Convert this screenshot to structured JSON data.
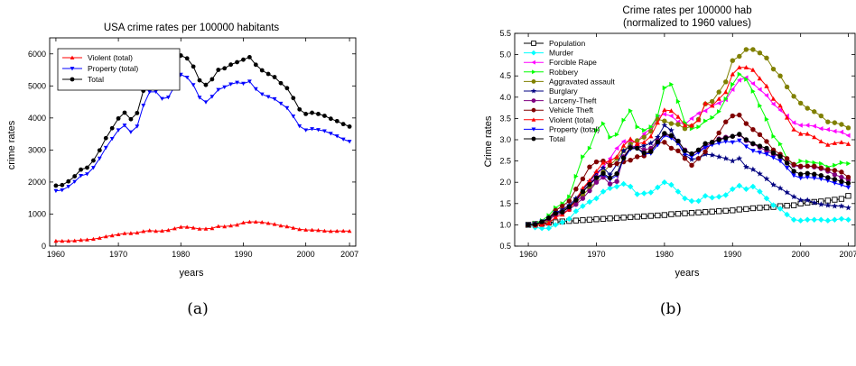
{
  "panel_labels": {
    "a": "(a)",
    "b": "(b)"
  },
  "chart_data": [
    {
      "type": "line",
      "title": "USA crime rates per 100000 habitants",
      "subtitle": "",
      "xlabel": "years",
      "ylabel": "crime rates",
      "xlim": [
        1959,
        2008
      ],
      "ylim": [
        0,
        6500
      ],
      "xticks": [
        1960,
        1970,
        1980,
        1990,
        2000,
        2007
      ],
      "yticks": [
        0,
        1000,
        2000,
        3000,
        4000,
        5000,
        6000
      ],
      "grid": false,
      "legend_position": "top-left",
      "x": [
        1960,
        1961,
        1962,
        1963,
        1964,
        1965,
        1966,
        1967,
        1968,
        1969,
        1970,
        1971,
        1972,
        1973,
        1974,
        1975,
        1976,
        1977,
        1978,
        1979,
        1980,
        1981,
        1982,
        1983,
        1984,
        1985,
        1986,
        1987,
        1988,
        1989,
        1990,
        1991,
        1992,
        1993,
        1994,
        1995,
        1996,
        1997,
        1998,
        1999,
        2000,
        2001,
        2002,
        2003,
        2004,
        2005,
        2006,
        2007
      ],
      "series": [
        {
          "name": "Violent (total)",
          "color": "#ff0000",
          "marker": "triangle-up",
          "values": [
            161,
            158,
            162,
            168,
            190,
            200,
            220,
            253,
            298,
            329,
            364,
            396,
            401,
            417,
            461,
            487,
            467,
            475,
            497,
            548,
            597,
            594,
            571,
            538,
            539,
            556,
            620,
            610,
            637,
            663,
            732,
            758,
            758,
            747,
            714,
            685,
            637,
            611,
            568,
            523,
            507,
            505,
            494,
            476,
            464,
            469,
            474,
            467
          ]
        },
        {
          "name": "Property (total)",
          "color": "#0000ff",
          "marker": "triangle-down",
          "values": [
            1726,
            1748,
            1857,
            2012,
            2197,
            2249,
            2447,
            2737,
            3071,
            3351,
            3621,
            3769,
            3560,
            3737,
            4389,
            4811,
            4820,
            4601,
            4642,
            4986,
            5353,
            5264,
            5032,
            4638,
            4492,
            4666,
            4881,
            4963,
            5054,
            5107,
            5073,
            5140,
            4903,
            4740,
            4660,
            4591,
            4451,
            4312,
            4052,
            3744,
            3618,
            3658,
            3630,
            3591,
            3514,
            3432,
            3335,
            3264
          ]
        },
        {
          "name": "Total",
          "color": "#000000",
          "marker": "circle",
          "values": [
            1887,
            1906,
            2020,
            2180,
            2388,
            2449,
            2671,
            2990,
            3370,
            3680,
            3985,
            4165,
            3961,
            4154,
            4850,
            5298,
            5287,
            5077,
            5140,
            5566,
            5950,
            5858,
            5604,
            5175,
            5031,
            5207,
            5501,
            5550,
            5664,
            5741,
            5820,
            5898,
            5661,
            5487,
            5374,
            5276,
            5087,
            4930,
            4620,
            4267,
            4125,
            4163,
            4125,
            4067,
            3977,
            3901,
            3809,
            3731
          ]
        }
      ]
    },
    {
      "type": "line",
      "title": "Crime rates per 100000 hab",
      "subtitle": "(normalized to 1960 values)",
      "xlabel": "years",
      "ylabel": "Crime rates",
      "xlim": [
        1958,
        2008
      ],
      "ylim": [
        0.5,
        5.5
      ],
      "xticks": [
        1960,
        1970,
        1980,
        1990,
        2000,
        2007
      ],
      "yticks": [
        0.5,
        1.0,
        1.5,
        2.0,
        2.5,
        3.0,
        3.5,
        4.0,
        4.5,
        5.0,
        5.5
      ],
      "grid": false,
      "legend_position": "top-left",
      "x": [
        1960,
        1961,
        1962,
        1963,
        1964,
        1965,
        1966,
        1967,
        1968,
        1969,
        1970,
        1971,
        1972,
        1973,
        1974,
        1975,
        1976,
        1977,
        1978,
        1979,
        1980,
        1981,
        1982,
        1983,
        1984,
        1985,
        1986,
        1987,
        1988,
        1989,
        1990,
        1991,
        1992,
        1993,
        1994,
        1995,
        1996,
        1997,
        1998,
        1999,
        2000,
        2001,
        2002,
        2003,
        2004,
        2005,
        2006,
        2007
      ],
      "series": [
        {
          "name": "Population",
          "color": "#000000",
          "marker": "square-open",
          "values": [
            1.0,
            1.02,
            1.03,
            1.05,
            1.06,
            1.08,
            1.09,
            1.1,
            1.11,
            1.12,
            1.13,
            1.14,
            1.15,
            1.16,
            1.17,
            1.18,
            1.19,
            1.2,
            1.21,
            1.22,
            1.23,
            1.25,
            1.26,
            1.27,
            1.28,
            1.29,
            1.3,
            1.31,
            1.32,
            1.33,
            1.34,
            1.36,
            1.37,
            1.39,
            1.4,
            1.41,
            1.42,
            1.44,
            1.45,
            1.46,
            1.5,
            1.52,
            1.54,
            1.55,
            1.57,
            1.59,
            1.61,
            1.68
          ]
        },
        {
          "name": "Murder",
          "color": "#00ffff",
          "marker": "diamond",
          "values": [
            1.0,
            0.94,
            0.92,
            0.92,
            1.0,
            1.06,
            1.14,
            1.32,
            1.44,
            1.54,
            1.62,
            1.78,
            1.86,
            1.9,
            1.96,
            1.9,
            1.72,
            1.74,
            1.76,
            1.88,
            2.0,
            1.94,
            1.78,
            1.62,
            1.56,
            1.56,
            1.68,
            1.64,
            1.66,
            1.7,
            1.84,
            1.92,
            1.84,
            1.9,
            1.78,
            1.62,
            1.46,
            1.38,
            1.24,
            1.12,
            1.1,
            1.12,
            1.12,
            1.12,
            1.1,
            1.12,
            1.14,
            1.12
          ]
        },
        {
          "name": "Forcible Rape",
          "color": "#ff00ff",
          "marker": "triangle-left",
          "values": [
            1.0,
            1.0,
            1.04,
            1.08,
            1.26,
            1.34,
            1.44,
            1.54,
            1.76,
            1.96,
            2.16,
            2.36,
            2.56,
            2.8,
            2.96,
            2.96,
            2.96,
            3.14,
            3.26,
            3.54,
            3.6,
            3.56,
            3.42,
            3.36,
            3.5,
            3.62,
            3.68,
            3.8,
            3.86,
            3.94,
            4.18,
            4.4,
            4.46,
            4.32,
            4.18,
            4.04,
            3.84,
            3.7,
            3.56,
            3.4,
            3.34,
            3.34,
            3.32,
            3.26,
            3.24,
            3.2,
            3.18,
            3.1
          ]
        },
        {
          "name": "Robbery",
          "color": "#00ff00",
          "marker": "triangle-right",
          "values": [
            1.0,
            1.04,
            1.1,
            1.22,
            1.4,
            1.5,
            1.66,
            2.14,
            2.6,
            2.8,
            3.22,
            3.38,
            3.06,
            3.12,
            3.46,
            3.68,
            3.3,
            3.22,
            3.3,
            3.56,
            4.22,
            4.3,
            3.9,
            3.4,
            3.26,
            3.3,
            3.44,
            3.52,
            3.66,
            3.96,
            4.3,
            4.54,
            4.42,
            4.14,
            3.8,
            3.48,
            3.08,
            2.9,
            2.56,
            2.4,
            2.5,
            2.48,
            2.46,
            2.44,
            2.36,
            2.4,
            2.46,
            2.44
          ]
        },
        {
          "name": "Aggravated assault",
          "color": "#808000",
          "marker": "circle",
          "values": [
            1.0,
            1.0,
            1.04,
            1.1,
            1.26,
            1.34,
            1.42,
            1.52,
            1.7,
            1.86,
            2.02,
            2.24,
            2.4,
            2.56,
            2.74,
            2.9,
            2.98,
            3.06,
            3.2,
            3.48,
            3.44,
            3.38,
            3.36,
            3.26,
            3.32,
            3.48,
            3.84,
            3.9,
            4.12,
            4.36,
            4.86,
            4.96,
            5.12,
            5.12,
            5.04,
            4.92,
            4.66,
            4.5,
            4.24,
            4.02,
            3.86,
            3.74,
            3.66,
            3.56,
            3.42,
            3.4,
            3.36,
            3.28
          ]
        },
        {
          "name": "Burglary",
          "color": "#000080",
          "marker": "star",
          "values": [
            1.0,
            1.02,
            1.06,
            1.16,
            1.28,
            1.36,
            1.46,
            1.62,
            1.82,
            2.02,
            2.22,
            2.34,
            2.18,
            2.42,
            2.74,
            2.84,
            2.82,
            2.86,
            2.92,
            3.06,
            3.34,
            3.22,
            2.92,
            2.64,
            2.54,
            2.56,
            2.66,
            2.64,
            2.6,
            2.56,
            2.5,
            2.56,
            2.36,
            2.3,
            2.2,
            2.08,
            1.94,
            1.86,
            1.76,
            1.66,
            1.58,
            1.58,
            1.52,
            1.48,
            1.46,
            1.44,
            1.44,
            1.4
          ]
        },
        {
          "name": "Larceny-Theft",
          "color": "#800080",
          "marker": "circle",
          "values": [
            1.0,
            1.02,
            1.06,
            1.14,
            1.22,
            1.28,
            1.36,
            1.48,
            1.62,
            1.8,
            2.0,
            2.12,
            1.96,
            2.02,
            2.6,
            2.82,
            2.86,
            2.76,
            2.8,
            2.98,
            3.12,
            3.08,
            2.96,
            2.76,
            2.66,
            2.74,
            2.84,
            2.94,
            3.02,
            3.06,
            3.08,
            3.12,
            2.98,
            2.9,
            2.82,
            2.74,
            2.66,
            2.6,
            2.46,
            2.4,
            2.36,
            2.38,
            2.36,
            2.32,
            2.26,
            2.18,
            2.12,
            2.06
          ]
        },
        {
          "name": "Vehicle Theft",
          "color": "#800000",
          "marker": "circle",
          "values": [
            1.0,
            1.0,
            1.06,
            1.16,
            1.34,
            1.44,
            1.56,
            1.84,
            2.08,
            2.36,
            2.48,
            2.5,
            2.4,
            2.44,
            2.48,
            2.52,
            2.6,
            2.62,
            2.74,
            2.92,
            2.94,
            2.8,
            2.74,
            2.56,
            2.4,
            2.56,
            2.72,
            2.94,
            3.16,
            3.42,
            3.56,
            3.58,
            3.38,
            3.24,
            3.12,
            2.96,
            2.76,
            2.66,
            2.56,
            2.42,
            2.38,
            2.38,
            2.38,
            2.34,
            2.3,
            2.28,
            2.24,
            2.12
          ]
        },
        {
          "name": "Violent (total)",
          "color": "#ff0000",
          "marker": "triangle-up",
          "values": [
            1.0,
            0.98,
            1.0,
            1.04,
            1.18,
            1.24,
            1.36,
            1.58,
            1.86,
            2.04,
            2.26,
            2.46,
            2.5,
            2.6,
            2.86,
            3.02,
            2.9,
            2.94,
            3.08,
            3.4,
            3.7,
            3.68,
            3.54,
            3.34,
            3.34,
            3.46,
            3.86,
            3.8,
            3.96,
            4.12,
            4.54,
            4.7,
            4.7,
            4.64,
            4.44,
            4.26,
            3.96,
            3.8,
            3.52,
            3.24,
            3.14,
            3.14,
            3.06,
            2.96,
            2.88,
            2.92,
            2.94,
            2.9
          ]
        },
        {
          "name": "Property (total)",
          "color": "#0000ff",
          "marker": "triangle-down",
          "values": [
            1.0,
            1.01,
            1.08,
            1.16,
            1.28,
            1.3,
            1.42,
            1.58,
            1.78,
            1.94,
            2.1,
            2.18,
            2.06,
            2.16,
            2.54,
            2.78,
            2.8,
            2.66,
            2.68,
            2.88,
            3.1,
            3.04,
            2.92,
            2.68,
            2.6,
            2.7,
            2.82,
            2.88,
            2.92,
            2.96,
            2.94,
            2.98,
            2.84,
            2.74,
            2.7,
            2.66,
            2.58,
            2.5,
            2.34,
            2.16,
            2.1,
            2.12,
            2.1,
            2.08,
            2.04,
            1.98,
            1.94,
            1.88
          ]
        },
        {
          "name": "Total",
          "color": "#000000",
          "marker": "circle",
          "values": [
            1.0,
            1.01,
            1.07,
            1.16,
            1.27,
            1.3,
            1.42,
            1.58,
            1.78,
            1.95,
            2.11,
            2.21,
            2.1,
            2.2,
            2.57,
            2.81,
            2.8,
            2.69,
            2.72,
            2.95,
            3.15,
            3.1,
            2.97,
            2.74,
            2.67,
            2.76,
            2.91,
            2.94,
            3.0,
            3.04,
            3.08,
            3.13,
            3.0,
            2.91,
            2.85,
            2.8,
            2.69,
            2.61,
            2.45,
            2.26,
            2.19,
            2.21,
            2.19,
            2.16,
            2.11,
            2.07,
            2.02,
            1.98
          ]
        }
      ]
    }
  ]
}
